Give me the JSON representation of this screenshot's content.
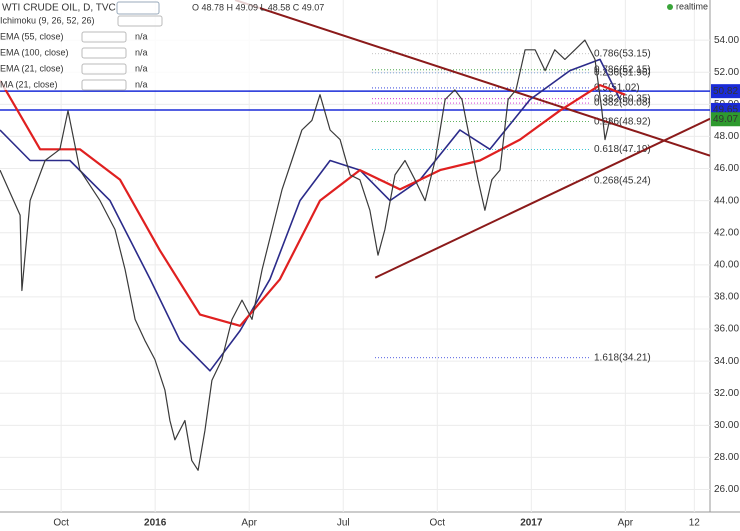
{
  "chart_data": {
    "type": "line",
    "title": "WTI CRUDE OIL, D, TVC",
    "ohlc_text": "O 48.78 H 49.09 L 48.58 C 49.07",
    "status": "realtime",
    "indicators": [
      {
        "name": "Ichimoku (9, 26, 52, 26)",
        "value_text": null
      },
      {
        "name": "EMA (55, close)",
        "value_text": "n/a"
      },
      {
        "name": "EMA (100, close)",
        "value_text": "n/a"
      },
      {
        "name": "EMA (21, close)",
        "value_text": "n/a"
      },
      {
        "name": "MA (21, close)",
        "value_text": "n/a"
      }
    ],
    "xlim": [
      -4.95,
      17.7
    ],
    "xticks": [
      {
        "value": -3,
        "label": "Oct"
      },
      {
        "value": 0,
        "label": "2016"
      },
      {
        "value": 3,
        "label": "Apr"
      },
      {
        "value": 6,
        "label": "Jul"
      },
      {
        "value": 9,
        "label": "Oct"
      },
      {
        "value": 12,
        "label": "2017"
      },
      {
        "value": 15,
        "label": "Apr"
      },
      {
        "value": 17.2,
        "label": "12"
      }
    ],
    "ylim": [
      24.6,
      56.5
    ],
    "yticks": [
      {
        "value": 26,
        "label": "26.00"
      },
      {
        "value": 28,
        "label": "28.00"
      },
      {
        "value": 30,
        "label": "30.00"
      },
      {
        "value": 32,
        "label": "32.00"
      },
      {
        "value": 34,
        "label": "34.00"
      },
      {
        "value": 36,
        "label": "36.00"
      },
      {
        "value": 38,
        "label": "38.00"
      },
      {
        "value": 40,
        "label": "40.00"
      },
      {
        "value": 42,
        "label": "42.00"
      },
      {
        "value": 44,
        "label": "44.00"
      },
      {
        "value": 46,
        "label": "46.00"
      },
      {
        "value": 48,
        "label": "48.00"
      },
      {
        "value": 50,
        "label": "50.00"
      },
      {
        "value": 52,
        "label": "52.00"
      },
      {
        "value": 54,
        "label": "54.00"
      }
    ],
    "grid": true,
    "series": [
      {
        "name": "WTI CRUDE OIL",
        "color": "#3a3a3a",
        "width": 1.2,
        "x": [
          -4.95,
          -4.31,
          -4.25,
          -3.99,
          -3.51,
          -3.04,
          -2.78,
          -2.4,
          -1.76,
          -1.28,
          -0.96,
          -0.64,
          -0.33,
          -0.01,
          0.31,
          0.47,
          0.63,
          0.95,
          1.17,
          1.37,
          1.59,
          1.81,
          2.13,
          2.45,
          2.77,
          3.09,
          3.41,
          3.73,
          4.05,
          4.36,
          4.68,
          5.0,
          5.26,
          5.58,
          5.9,
          6.22,
          6.53,
          6.85,
          7.11,
          7.33,
          7.65,
          7.97,
          8.29,
          8.61,
          8.93,
          9.25,
          9.56,
          9.79,
          10.04,
          10.3,
          10.52,
          10.74,
          11.0,
          11.26,
          11.51,
          11.8,
          12.12,
          12.44,
          12.75,
          13.07,
          13.39,
          13.71,
          14.03,
          14.25,
          14.35,
          14.51
        ],
        "values": [
          45.9,
          43.1,
          38.4,
          44,
          46.5,
          47.2,
          49.6,
          45.9,
          44,
          42.2,
          39.7,
          36.6,
          35.3,
          34.1,
          32.2,
          30.3,
          29.1,
          30.3,
          27.8,
          27.2,
          29.7,
          32.8,
          34.1,
          36.6,
          37.8,
          36.6,
          39.7,
          42.2,
          44.7,
          46.5,
          48.4,
          49,
          50.6,
          48.4,
          47.8,
          45.6,
          45.3,
          43.4,
          40.6,
          42.2,
          45.6,
          46.5,
          45.3,
          44,
          46.5,
          50.3,
          50.9,
          50.3,
          47.8,
          45.3,
          43.4,
          45.3,
          45.9,
          50.3,
          50.9,
          53.4,
          53.4,
          52.1,
          53.4,
          52.8,
          53.4,
          54,
          52.8,
          49.6,
          47.8,
          49.1
        ]
      },
      {
        "name": "EMA (100, close)",
        "color": "#e02020",
        "width": 2.2,
        "x": [
          -4.95,
          -3.67,
          -2.4,
          -1.12,
          0.15,
          1.43,
          2.71,
          3.98,
          5.26,
          6.53,
          7.81,
          9.09,
          10.36,
          11.64,
          12.91,
          14.19,
          14.99
        ],
        "values": [
          51.5,
          47.2,
          47.2,
          45.3,
          40.9,
          36.9,
          36.2,
          39.1,
          44,
          45.9,
          44.7,
          45.9,
          46.5,
          47.8,
          49.6,
          51.2,
          50.6
        ]
      },
      {
        "name": "EMA (55, close)",
        "color": "#2b2b8a",
        "width": 1.6,
        "x": [
          -4.95,
          -3.99,
          -2.72,
          -1.44,
          -0.16,
          0.79,
          1.75,
          2.71,
          3.66,
          4.62,
          5.58,
          6.53,
          7.49,
          8.45,
          9.72,
          10.68,
          11.96,
          13.23,
          14.19,
          14.83
        ],
        "values": [
          48.4,
          46.5,
          46.5,
          44,
          39.1,
          35.3,
          33.4,
          35.9,
          39.1,
          44,
          46.5,
          45.9,
          44,
          45.3,
          48.4,
          47.2,
          50.3,
          52.1,
          52.8,
          50.3
        ]
      }
    ],
    "trend_lines": [
      {
        "color": "#8b1a1a",
        "x": [
          2.55,
          17.7
        ],
        "values": [
          56.5,
          46.8
        ]
      },
      {
        "color": "#8b1a1a",
        "x": [
          7.02,
          17.7
        ],
        "values": [
          39.2,
          49.1
        ]
      }
    ],
    "levels": [
      {
        "value": 50.82,
        "label": "50.82",
        "color": "#1a2bd8"
      },
      {
        "value": 49.65,
        "label": "49.65",
        "color": "#1a2bd8"
      },
      {
        "value": 49.07,
        "label": "49.07",
        "color": "#2e9a2e"
      }
    ],
    "fib_labels": [
      {
        "value": 53.15,
        "label": "0.786(53.15)",
        "color": "#b0b0b0"
      },
      {
        "value": 52.15,
        "label": "0.786(52.15)",
        "color": "#2e9a2e"
      },
      {
        "value": 51.96,
        "label": "0.236(51.96)",
        "color": "#5a8ad0"
      },
      {
        "value": 51.02,
        "label": "0.5(51.02)",
        "color": "#1a2bd8"
      },
      {
        "value": 50.35,
        "label": "0.382(50.35)",
        "color": "#d020d0"
      },
      {
        "value": 50.08,
        "label": "0.382(50.08)",
        "color": "#d020d0"
      },
      {
        "value": 48.92,
        "label": "0.236(48.92)",
        "color": "#2e9a2e"
      },
      {
        "value": 47.19,
        "label": "0.618(47.19)",
        "color": "#20c0d0"
      },
      {
        "value": 45.24,
        "label": "0.268(45.24)",
        "color": "#b0b0b0"
      },
      {
        "value": 34.21,
        "label": "1.618(34.21)",
        "color": "#1a2bd8"
      }
    ]
  }
}
